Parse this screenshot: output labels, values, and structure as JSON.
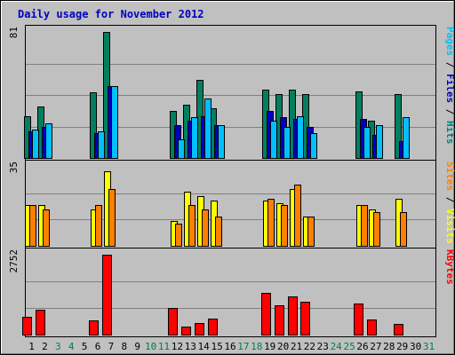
{
  "chart_data": {
    "type": "bar",
    "title": "Daily usage for November 2012",
    "days": [
      "1",
      "2",
      "3",
      "4",
      "5",
      "6",
      "7",
      "8",
      "9",
      "10",
      "11",
      "12",
      "13",
      "14",
      "15",
      "16",
      "17",
      "18",
      "19",
      "20",
      "21",
      "22",
      "23",
      "24",
      "25",
      "26",
      "27",
      "28",
      "29",
      "30",
      "31"
    ],
    "weekend_days": [
      "3",
      "4",
      "10",
      "11",
      "17",
      "18",
      "24",
      "25",
      "31"
    ],
    "panels": [
      {
        "id": "hits",
        "max_label": "81",
        "max": 81,
        "legend": [
          {
            "text": "Pages",
            "color": "#00c0ff"
          },
          {
            "text": " / ",
            "color": "#000000"
          },
          {
            "text": "Files",
            "color": "#0000c0"
          },
          {
            "text": " / ",
            "color": "#000000"
          },
          {
            "text": "Hits",
            "color": "#008080"
          }
        ],
        "series": [
          {
            "name": "Hits",
            "color": "#008060",
            "values": [
              27,
              33,
              0,
              0,
              0,
              42,
              81,
              0,
              0,
              0,
              0,
              30,
              34,
              50,
              32,
              0,
              0,
              0,
              44,
              41,
              44,
              41,
              0,
              0,
              0,
              43,
              24,
              0,
              41,
              0,
              0
            ]
          },
          {
            "name": "Files",
            "color": "#0000c0",
            "values": [
              17,
              20,
              0,
              0,
              0,
              16,
              46,
              0,
              0,
              0,
              0,
              21,
              24,
              27,
              21,
              0,
              0,
              0,
              30,
              26,
              25,
              20,
              0,
              0,
              0,
              25,
              15,
              0,
              11,
              0,
              0
            ]
          },
          {
            "name": "Pages",
            "color": "#00c0ff",
            "values": [
              18,
              22,
              0,
              0,
              0,
              17,
              46,
              0,
              0,
              0,
              0,
              12,
              26,
              38,
              21,
              0,
              0,
              0,
              24,
              20,
              27,
              16,
              0,
              0,
              0,
              20,
              21,
              0,
              26,
              0,
              0
            ]
          }
        ]
      },
      {
        "id": "visits",
        "max_label": "35",
        "max": 35,
        "legend": [
          {
            "text": "Sites",
            "color": "#ff8000"
          },
          {
            "text": " / ",
            "color": "#000000"
          },
          {
            "text": "Visits",
            "color": "#ffff00"
          }
        ],
        "series": [
          {
            "name": "Visits",
            "color": "#ffff00",
            "values": [
              18,
              18,
              0,
              0,
              0,
              16,
              33,
              0,
              0,
              0,
              0,
              11,
              24,
              22,
              20,
              0,
              0,
              0,
              20,
              19,
              25,
              13,
              0,
              0,
              0,
              18,
              16,
              0,
              21,
              0,
              0
            ]
          },
          {
            "name": "Sites",
            "color": "#ff8000",
            "values": [
              18,
              16,
              0,
              0,
              0,
              18,
              25,
              0,
              0,
              0,
              0,
              10,
              18,
              16,
              13,
              0,
              0,
              0,
              21,
              18,
              27,
              13,
              0,
              0,
              0,
              18,
              15,
              0,
              15,
              0,
              0
            ]
          }
        ]
      },
      {
        "id": "kbytes",
        "max_label": "2752",
        "max": 2752,
        "legend": [
          {
            "text": "KBytes",
            "color": "#ff0000"
          }
        ],
        "series": [
          {
            "name": "KBytes",
            "color": "#ff0000",
            "values": [
              600,
              850,
              0,
              0,
              0,
              500,
              2752,
              0,
              0,
              0,
              0,
              930,
              260,
              400,
              540,
              0,
              0,
              0,
              1450,
              1020,
              1300,
              1120,
              0,
              0,
              0,
              1060,
              530,
              0,
              360,
              0,
              0
            ]
          }
        ]
      }
    ]
  }
}
